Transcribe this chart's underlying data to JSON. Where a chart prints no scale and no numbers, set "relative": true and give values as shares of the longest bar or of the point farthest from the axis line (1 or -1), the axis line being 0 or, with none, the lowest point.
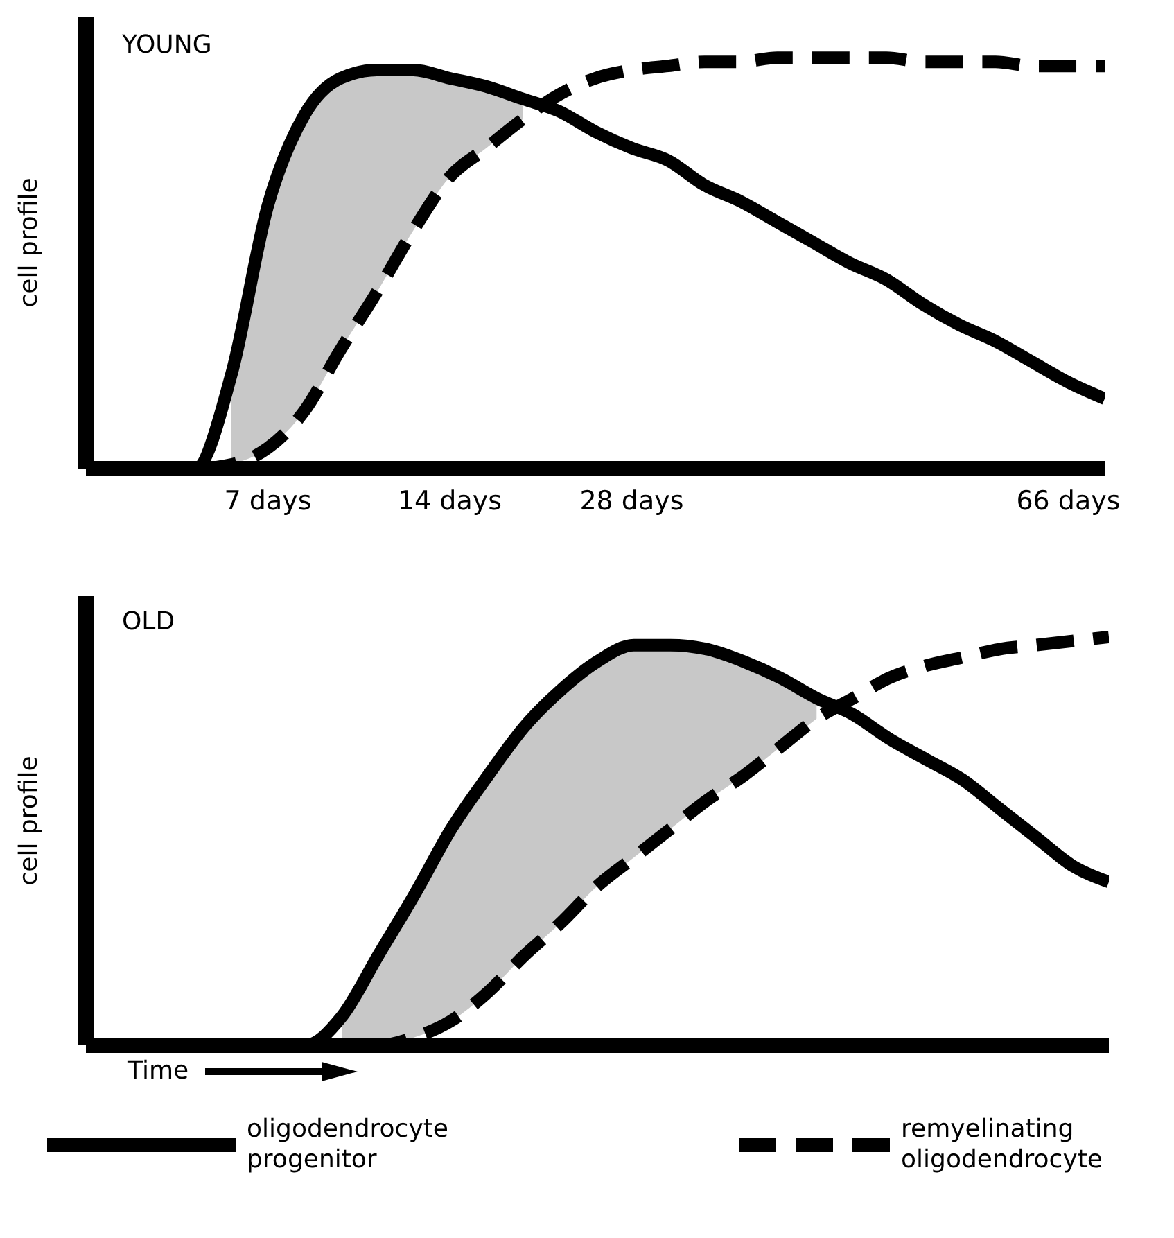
{
  "chart_data": [
    {
      "type": "line",
      "title": "YOUNG",
      "ylabel": "cell profile",
      "relative": true,
      "marker": "none",
      "legend": false,
      "grid": false,
      "categories": [
        null,
        null,
        null,
        null,
        null,
        "7 days",
        null,
        null,
        null,
        null,
        "14 days",
        null,
        null,
        null,
        null,
        "28 days",
        null,
        null,
        null,
        null,
        null,
        null,
        null,
        null,
        null,
        null,
        null,
        "66 days",
        null
      ],
      "series": [
        {
          "color": "#000000",
          "line_style": "solid",
          "values": [
            0,
            0,
            0,
            0,
            0.23,
            0.64,
            0.86,
            0.95,
            0.97,
            0.97,
            0.95,
            0.93,
            0.9,
            0.87,
            0.82,
            0.78,
            0.75,
            0.69,
            0.65,
            0.6,
            0.55,
            0.5,
            0.46,
            0.4,
            0.35,
            0.31,
            0.26,
            0.21,
            0.17
          ],
          "lower": [
            null,
            null,
            null,
            null,
            0.01,
            0.05,
            0.14,
            0.29,
            0.43,
            0.58,
            0.71,
            0.78,
            0.85,
            null,
            null,
            null,
            null,
            null,
            null,
            null,
            null,
            null,
            null,
            null,
            null,
            null,
            null,
            null,
            null
          ],
          "upper": [
            null,
            null,
            null,
            null,
            0.23,
            0.64,
            0.86,
            0.95,
            0.97,
            0.97,
            0.95,
            0.93,
            0.9,
            null,
            null,
            null,
            null,
            null,
            null,
            null,
            null,
            null,
            null,
            null,
            null,
            null,
            null,
            null,
            null
          ]
        },
        {
          "color": "#000000",
          "line_style": "dashed",
          "values": [
            0,
            0,
            0,
            0,
            0.01,
            0.05,
            0.14,
            0.29,
            0.43,
            0.58,
            0.71,
            0.78,
            0.85,
            0.91,
            0.95,
            0.97,
            0.98,
            0.99,
            0.99,
            1,
            1,
            1,
            1,
            0.99,
            0.99,
            0.99,
            0.98,
            0.98,
            0.98
          ]
        }
      ]
    },
    {
      "type": "line",
      "title": "OLD",
      "ylabel": "cell profile",
      "relative": true,
      "marker": "none",
      "legend": "bottom",
      "grid": false,
      "annotations": [
        "Time"
      ],
      "categories": [
        null,
        null,
        null,
        null,
        null,
        null,
        null,
        null,
        null,
        null,
        null,
        null,
        null,
        null,
        null,
        null,
        null,
        null,
        null,
        null,
        null,
        null,
        null,
        null,
        null,
        null,
        null,
        null,
        null
      ],
      "series": [
        {
          "name": "oligodendrocyte progenitor",
          "color": "#000000",
          "line_style": "solid",
          "values": [
            0,
            0,
            0,
            0,
            0,
            0,
            0,
            0.07,
            0.22,
            0.37,
            0.53,
            0.66,
            0.78,
            0.87,
            0.94,
            0.98,
            0.98,
            0.97,
            0.94,
            0.9,
            0.85,
            0.81,
            0.75,
            0.7,
            0.65,
            0.58,
            0.51,
            0.44,
            0.4
          ],
          "lower": [
            null,
            null,
            null,
            null,
            null,
            null,
            null,
            0,
            0,
            0.02,
            0.06,
            0.13,
            0.22,
            0.3,
            0.39,
            0.46,
            0.53,
            0.6,
            0.66,
            0.73,
            0.8,
            null,
            null,
            null,
            null,
            null,
            null,
            null,
            null
          ],
          "upper": [
            null,
            null,
            null,
            null,
            null,
            null,
            null,
            0.07,
            0.22,
            0.37,
            0.53,
            0.66,
            0.78,
            0.87,
            0.94,
            0.98,
            0.98,
            0.97,
            0.94,
            0.9,
            0.85,
            null,
            null,
            null,
            null,
            null,
            null,
            null,
            null
          ]
        },
        {
          "name": "remyelinating oligodendrocyte",
          "color": "#000000",
          "line_style": "dashed",
          "values": [
            0,
            0,
            0,
            0,
            0,
            0,
            0,
            0,
            0,
            0.02,
            0.06,
            0.13,
            0.22,
            0.3,
            0.39,
            0.46,
            0.53,
            0.6,
            0.66,
            0.73,
            0.8,
            0.85,
            0.9,
            0.93,
            0.95,
            0.97,
            0.98,
            0.99,
            1
          ]
        }
      ]
    }
  ]
}
